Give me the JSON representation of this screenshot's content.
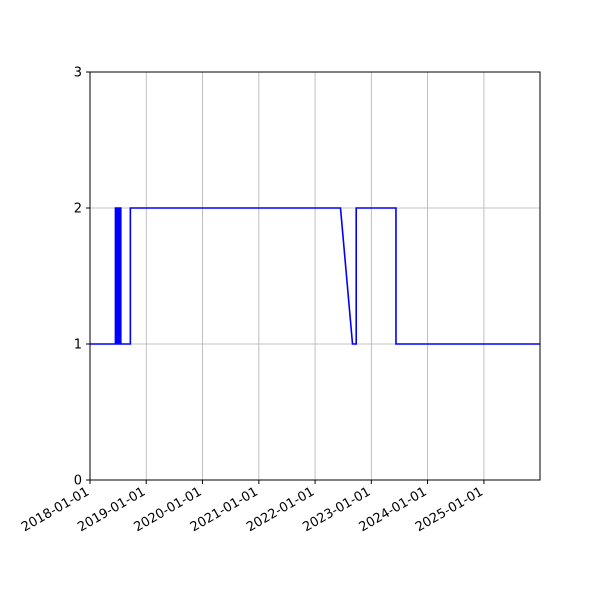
{
  "chart_data": {
    "type": "line",
    "title": "",
    "xlabel": "",
    "ylabel": "",
    "x_type": "date",
    "xlim": [
      "2018-01-01",
      "2025-12-31"
    ],
    "ylim": [
      0,
      3
    ],
    "grid": true,
    "line_color": "#0000ff",
    "grid_color": "#b0b0b0",
    "x_ticks": [
      "2018-01-01",
      "2019-01-01",
      "2020-01-01",
      "2021-01-01",
      "2022-01-01",
      "2023-01-01",
      "2024-01-01",
      "2025-01-01"
    ],
    "y_ticks": [
      "0",
      "1",
      "2",
      "3"
    ],
    "series": [
      {
        "points": [
          [
            "2018-01-01",
            1
          ],
          [
            "2018-06-15",
            1
          ],
          [
            "2018-06-15",
            2
          ],
          [
            "2018-06-22",
            2
          ],
          [
            "2018-06-22",
            1
          ],
          [
            "2018-06-29",
            1
          ],
          [
            "2018-06-29",
            2
          ],
          [
            "2018-07-06",
            2
          ],
          [
            "2018-07-06",
            1
          ],
          [
            "2018-07-13",
            1
          ],
          [
            "2018-07-13",
            2
          ],
          [
            "2018-07-20",
            2
          ],
          [
            "2018-07-20",
            1
          ],
          [
            "2018-09-20",
            1
          ],
          [
            "2018-09-20",
            2
          ],
          [
            "2022-06-15",
            2
          ],
          [
            "2022-09-01",
            1
          ],
          [
            "2022-09-25",
            1
          ],
          [
            "2022-09-25",
            2
          ],
          [
            "2023-06-10",
            2
          ],
          [
            "2023-06-10",
            1
          ],
          [
            "2025-12-31",
            1
          ]
        ]
      }
    ]
  }
}
